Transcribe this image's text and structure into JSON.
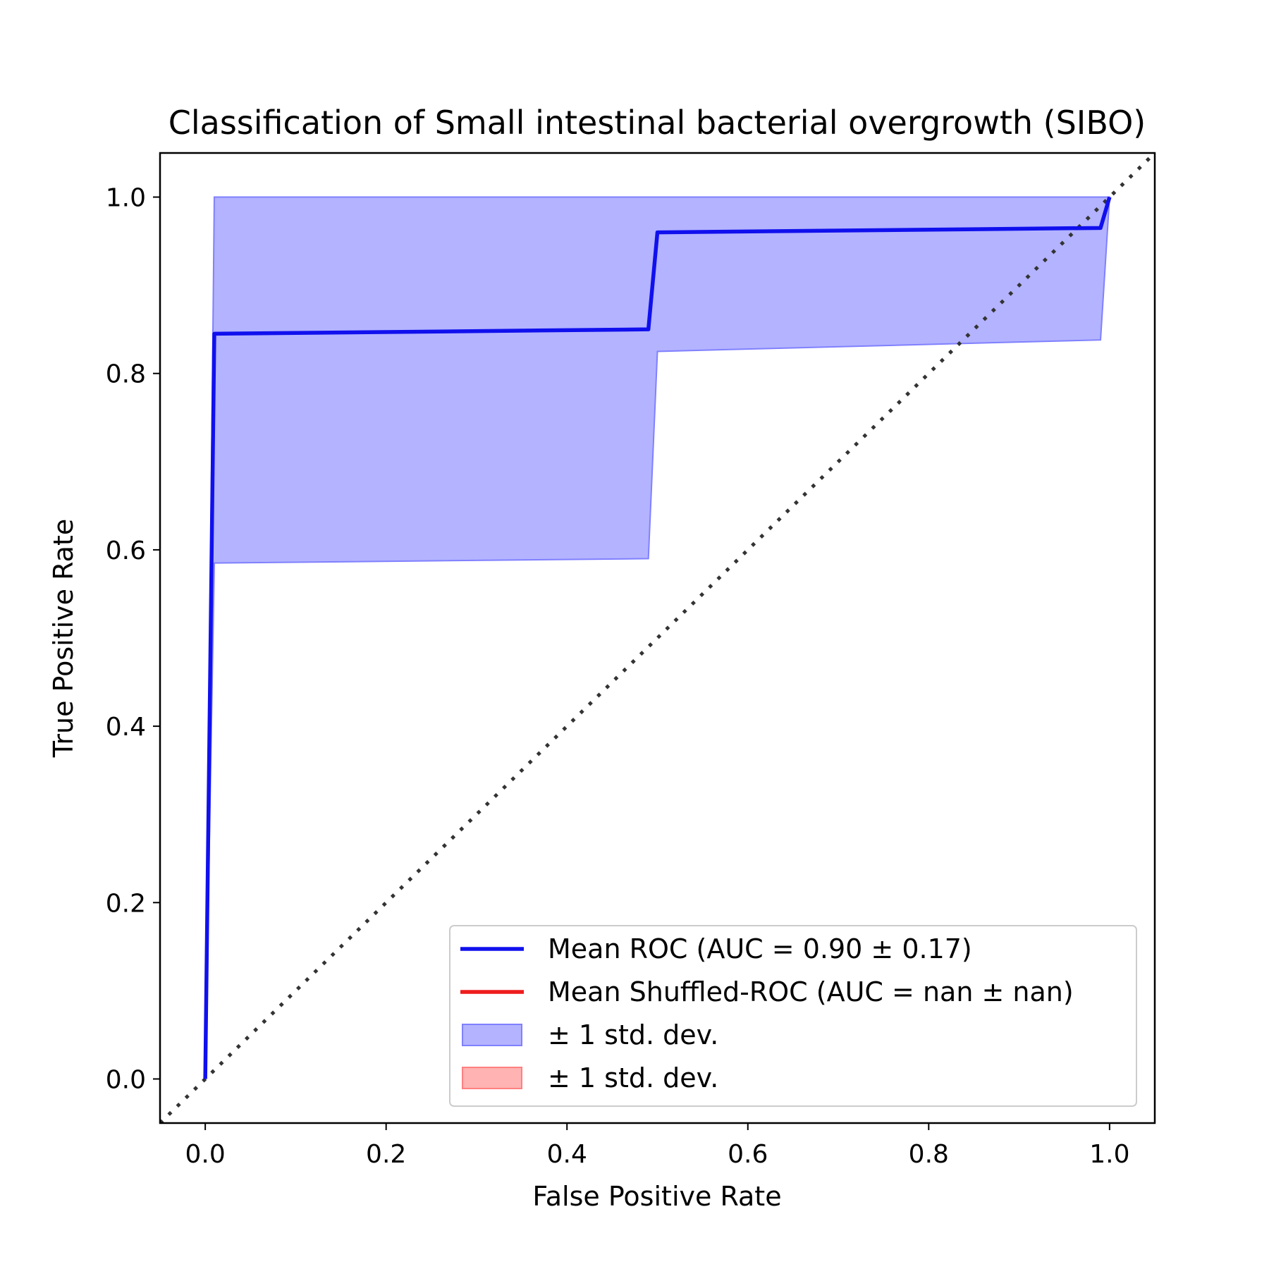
{
  "chart_data": {
    "type": "line",
    "title": "Classification of Small intestinal bacterial overgrowth (SIBO)",
    "xlabel": "False Positive Rate",
    "ylabel": "True Positive Rate",
    "xlim": [
      -0.05,
      1.05
    ],
    "ylim": [
      -0.05,
      1.05
    ],
    "x_ticks": [
      "0.0",
      "0.2",
      "0.4",
      "0.6",
      "0.8",
      "1.0"
    ],
    "y_ticks": [
      "0.0",
      "0.2",
      "0.4",
      "0.6",
      "0.8",
      "1.0"
    ],
    "grid": false,
    "legend_position": "lower-right",
    "series": [
      {
        "name": "Mean ROC (AUC = 0.90 ± 0.17)",
        "color": "#1010ee",
        "x": [
          0.0,
          0.01,
          0.49,
          0.5,
          0.99,
          1.0
        ],
        "y": [
          0.0,
          0.845,
          0.85,
          0.96,
          0.965,
          1.0
        ]
      },
      {
        "name": "Mean Shuffled-ROC (AUC = nan ± nan)",
        "color": "#ee1c1c",
        "x": [],
        "y": []
      }
    ],
    "bands": [
      {
        "name": "± 1 std. dev.",
        "color": "#b3b3ff",
        "edge_color": "#8080ff",
        "x": [
          0.0,
          0.01,
          0.49,
          0.5,
          0.99,
          1.0
        ],
        "upper": [
          0.0,
          1.0,
          1.0,
          1.0,
          1.0,
          1.0
        ],
        "lower": [
          0.0,
          0.585,
          0.59,
          0.825,
          0.838,
          1.0
        ]
      },
      {
        "name": "± 1 std. dev.",
        "color": "#ffb3b3",
        "edge_color": "#ff8080",
        "x": [],
        "upper": [],
        "lower": []
      }
    ],
    "reference_line": {
      "x": [
        -0.05,
        1.05
      ],
      "y": [
        -0.05,
        1.05
      ],
      "color": "#333333",
      "style": "dotted"
    }
  }
}
